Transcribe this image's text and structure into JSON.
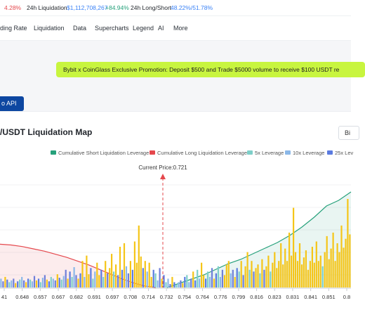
{
  "ticker": {
    "change": "4.28%",
    "liq_label": "24h Liquidation",
    "liq_value": "$1,112,708,267",
    "liq_change": "+84.94%",
    "ls_label": "24h Long/Short",
    "ls_value": "48.22%/51.78%"
  },
  "nav": {
    "items": [
      "ding Rate",
      "Liquidation",
      "Data",
      "Supercharts",
      "Legend",
      "AI",
      "More"
    ]
  },
  "promo": {
    "text": "Bybit x CoinGlass Exclusive Promotion: Deposit $500 and Trade $5000 volume to receive $100 USDT re"
  },
  "api_button": "o API",
  "chart_header": {
    "title": "/USDT Liquidation Map",
    "exchange_button": "Bi"
  },
  "colors": {
    "short_cum": "#26a17b",
    "long_cum": "#e5484d",
    "lev5": "#7ecfc9",
    "lev10": "#8bb8e8",
    "lev25": "#5b7be0",
    "gold": "#f5c518",
    "purple": "#6f7fd9",
    "current": "#e5484d"
  },
  "chart_data": {
    "type": "bar",
    "legend": [
      {
        "name": "Cumulative Short Liquidation Leverage",
        "color": "#26a17b"
      },
      {
        "name": "Cumulative Long Liquidation Leverage",
        "color": "#e5484d"
      },
      {
        "name": "5x Leverage",
        "color": "#7ecfc9"
      },
      {
        "name": "10x Leverage",
        "color": "#8bb8e8"
      },
      {
        "name": "25x Lev",
        "color": "#5b7be0"
      }
    ],
    "current_price_label": "Current Price:0.721",
    "x_ticks": [
      "41",
      "0.648",
      "0.657",
      "0.667",
      "0.682",
      "0.691",
      "0.697",
      "0.708",
      "0.714",
      "0.732",
      "0.754",
      "0.764",
      "0.776",
      "0.799",
      "0.816",
      "0.823",
      "0.831",
      "0.841",
      "0.851",
      "0.8"
    ],
    "bars_relative": [
      0.1,
      0.07,
      0.12,
      0.09,
      0.06,
      0.08,
      0.1,
      0.05,
      0.07,
      0.09,
      0.12,
      0.08,
      0.06,
      0.1,
      0.09,
      0.07,
      0.13,
      0.08,
      0.1,
      0.06,
      0.11,
      0.14,
      0.09,
      0.07,
      0.12,
      0.1,
      0.08,
      0.15,
      0.11,
      0.09,
      0.13,
      0.2,
      0.1,
      0.18,
      0.12,
      0.23,
      0.14,
      0.1,
      0.16,
      0.3,
      0.12,
      0.36,
      0.15,
      0.22,
      0.1,
      0.18,
      0.28,
      0.14,
      0.2,
      0.12,
      0.3,
      0.16,
      0.22,
      0.38,
      0.18,
      0.26,
      0.14,
      0.46,
      0.2,
      0.5,
      0.24,
      0.16,
      0.3,
      0.2,
      0.52,
      0.28,
      0.7,
      0.35,
      0.22,
      0.3,
      0.18,
      0.28,
      0.12,
      0.2,
      0.16,
      0.08,
      0.22,
      0.1,
      0.14,
      0.06,
      0.1,
      0.04,
      0.12,
      0.06,
      0.03,
      0.06,
      0.08,
      0.05,
      0.12,
      0.14,
      0.06,
      0.1,
      0.18,
      0.08,
      0.2,
      0.1,
      0.28,
      0.14,
      0.1,
      0.18,
      0.12,
      0.22,
      0.1,
      0.16,
      0.24,
      0.12,
      0.2,
      0.14,
      0.26,
      0.3,
      0.16,
      0.2,
      0.12,
      0.22,
      0.18,
      0.3,
      0.14,
      0.24,
      0.4,
      0.2,
      0.3,
      0.18,
      0.22,
      0.26,
      0.16,
      0.32,
      0.2,
      0.24,
      0.36,
      0.18,
      0.28,
      0.4,
      0.22,
      0.3,
      0.5,
      0.26,
      0.44,
      0.3,
      0.62,
      0.36,
      0.9,
      0.4,
      0.3,
      0.5,
      0.26,
      0.34,
      0.42,
      0.2,
      0.3,
      0.46,
      0.28,
      0.52,
      0.3,
      0.36,
      0.24,
      0.4,
      0.58,
      0.32,
      0.44,
      0.62,
      0.3,
      0.5,
      0.4,
      0.7,
      0.45,
      0.55,
      1.0,
      0.6
    ],
    "short_cumulative_relative": [
      0.0,
      0.03,
      0.06,
      0.09,
      0.13,
      0.17,
      0.2,
      0.24,
      0.28,
      0.32,
      0.37,
      0.43,
      0.5,
      0.58,
      0.62,
      0.68
    ],
    "long_cumulative_relative": [
      0.56,
      0.55,
      0.53,
      0.5,
      0.47,
      0.43,
      0.39,
      0.34,
      0.29,
      0.23,
      0.17,
      0.11,
      0.06,
      0.02,
      0.0
    ]
  }
}
